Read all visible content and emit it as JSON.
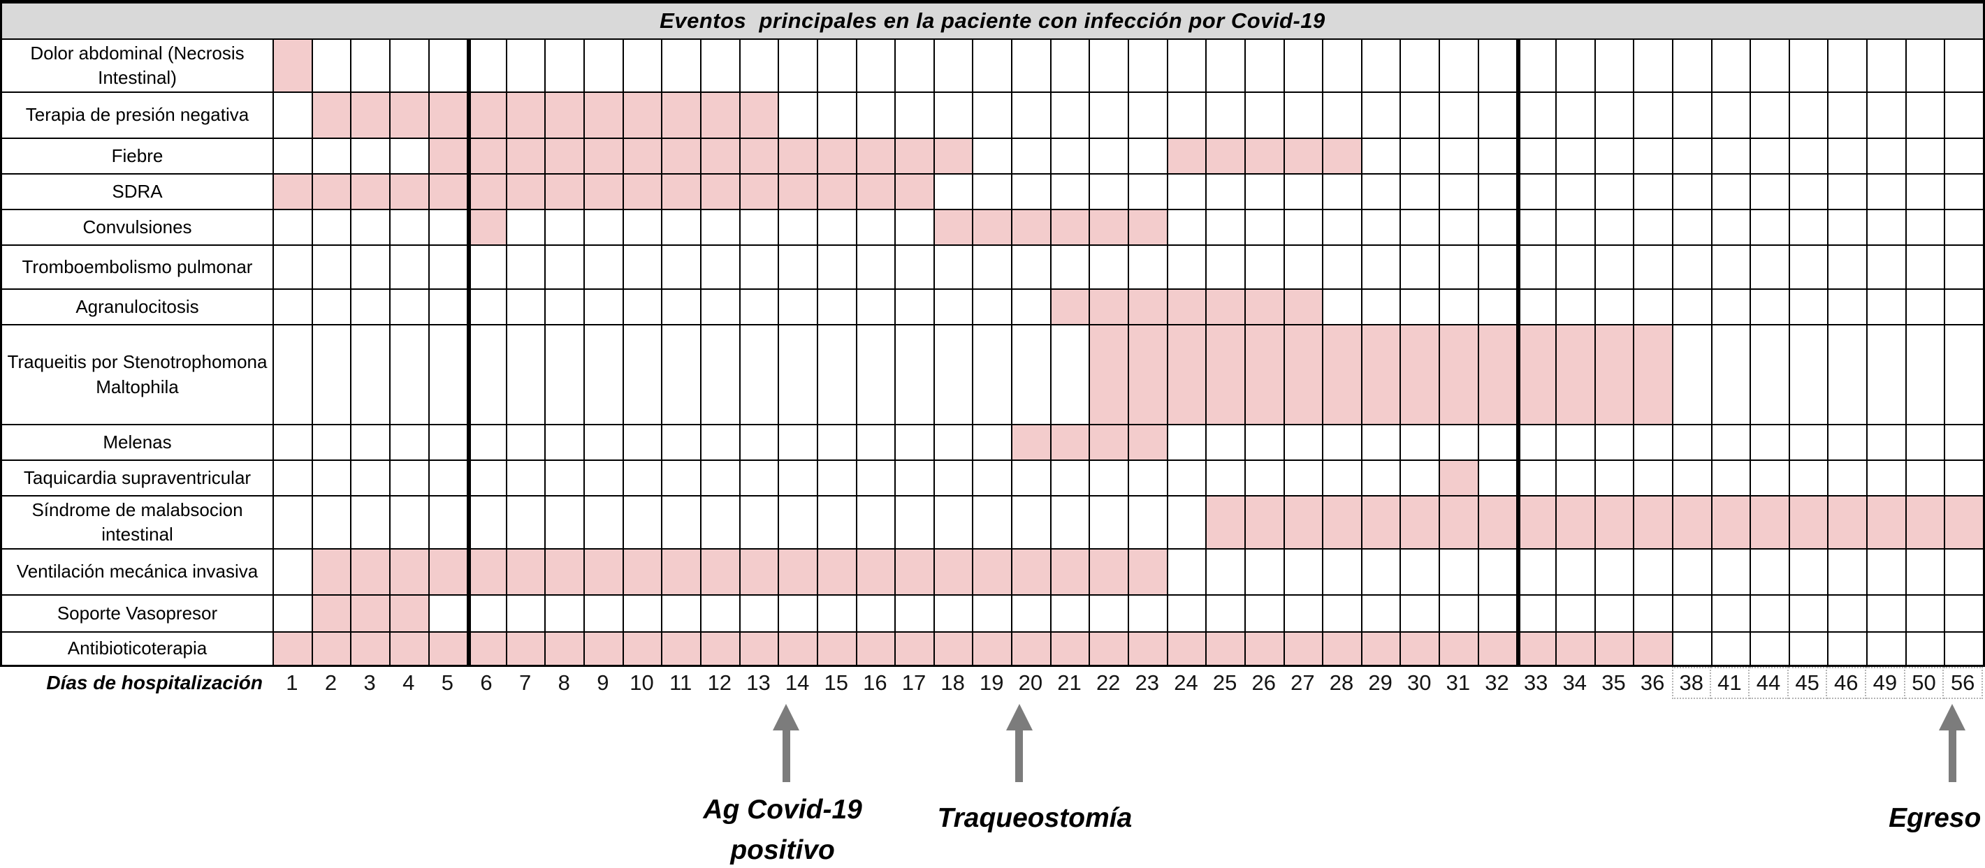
{
  "chart_data": {
    "type": "heatmap",
    "title": "Eventos  principales en la paciente con infección por Covid-19",
    "xlabel": "Días de hospitalización",
    "legend_position": "none",
    "grid": true,
    "fill_color": "#f3cccc",
    "arrow_color": "#7c7c7c",
    "day_labels": [
      "1",
      "2",
      "3",
      "4",
      "5",
      "6",
      "7",
      "8",
      "9",
      "10",
      "11",
      "12",
      "13",
      "14",
      "15",
      "16",
      "17",
      "18",
      "19",
      "20",
      "21",
      "22",
      "23",
      "24",
      "25",
      "26",
      "27",
      "28",
      "29",
      "30",
      "31",
      "32",
      "33",
      "34",
      "35",
      "36",
      "38",
      "41",
      "44",
      "45",
      "46",
      "49",
      "50",
      "56"
    ],
    "boxed_day_labels": [
      "38",
      "41",
      "44",
      "45",
      "46",
      "49",
      "50",
      "56"
    ],
    "thick_gridlines_after_days": [
      "5",
      "32"
    ],
    "rows": [
      {
        "label": "Dolor abdominal (Necrosis Intestinal)",
        "filled_day_ranges": [
          [
            1,
            1
          ]
        ]
      },
      {
        "label": "Terapia de presión negativa",
        "filled_day_ranges": [
          [
            2,
            13
          ]
        ]
      },
      {
        "label": "Fiebre",
        "filled_day_ranges": [
          [
            5,
            18
          ],
          [
            24,
            28
          ]
        ]
      },
      {
        "label": "SDRA",
        "filled_day_ranges": [
          [
            1,
            17
          ]
        ]
      },
      {
        "label": "Convulsiones",
        "filled_day_ranges": [
          [
            6,
            6
          ],
          [
            18,
            23
          ]
        ]
      },
      {
        "label": "Tromboembolismo pulmonar",
        "filled_day_ranges": []
      },
      {
        "label": "Agranulocitosis",
        "filled_day_ranges": [
          [
            21,
            27
          ]
        ]
      },
      {
        "label": "Traqueitis por Stenotrophomona Maltophila",
        "filled_day_ranges": [
          [
            22,
            36
          ]
        ]
      },
      {
        "label": "Melenas",
        "filled_day_ranges": [
          [
            20,
            23
          ]
        ]
      },
      {
        "label": "Taquicardia supraventricular",
        "filled_day_ranges": [
          [
            31,
            31
          ]
        ]
      },
      {
        "label": "Síndrome de malabsocion intestinal",
        "filled_day_ranges": [
          [
            25,
            56
          ]
        ]
      },
      {
        "label": "Ventilación mecánica invasiva",
        "filled_day_ranges": [
          [
            2,
            23
          ]
        ]
      },
      {
        "label": "Soporte Vasopresor",
        "filled_day_ranges": [
          [
            2,
            4
          ]
        ]
      },
      {
        "label": "Antibioticoterapia",
        "filled_day_ranges": [
          [
            1,
            36
          ]
        ]
      }
    ],
    "annotations": [
      {
        "day": "14",
        "lines": [
          "Ag Covid-19",
          "positivo"
        ]
      },
      {
        "day": "20",
        "lines": [
          "Traqueostomía"
        ]
      },
      {
        "day": "56",
        "lines": [
          "Egreso"
        ]
      }
    ]
  }
}
